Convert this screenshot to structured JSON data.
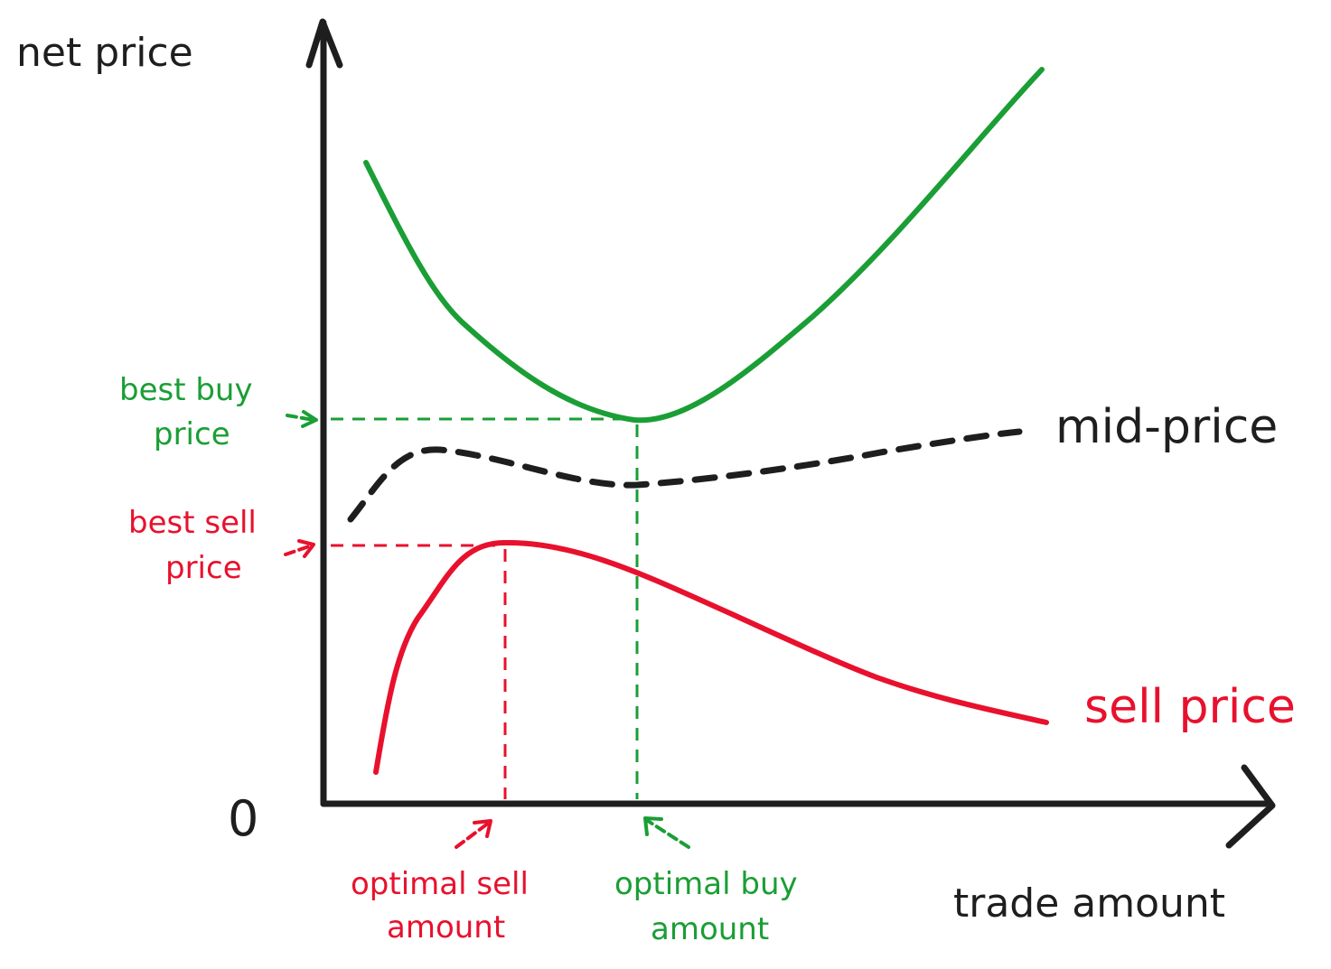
{
  "axes": {
    "y_label": "net price",
    "x_label": "trade amount",
    "origin_label": "0"
  },
  "curves": {
    "buy_price": {
      "label": "",
      "color": "#1a9e35"
    },
    "mid_price": {
      "label": "mid-price",
      "color": "#1e1e1e"
    },
    "sell_price": {
      "label": "sell price",
      "color": "#e8112d"
    }
  },
  "annotations": {
    "best_buy_price": {
      "line1": "best buy",
      "line2": "price",
      "color": "#1a9e35"
    },
    "best_sell_price": {
      "line1": "best sell",
      "line2": "price",
      "color": "#e8112d"
    },
    "optimal_sell_amount": {
      "line1": "optimal sell",
      "line2": "amount",
      "color": "#e8112d"
    },
    "optimal_buy_amount": {
      "line1": "optimal buy",
      "line2": "amount",
      "color": "#1a9e35"
    }
  }
}
